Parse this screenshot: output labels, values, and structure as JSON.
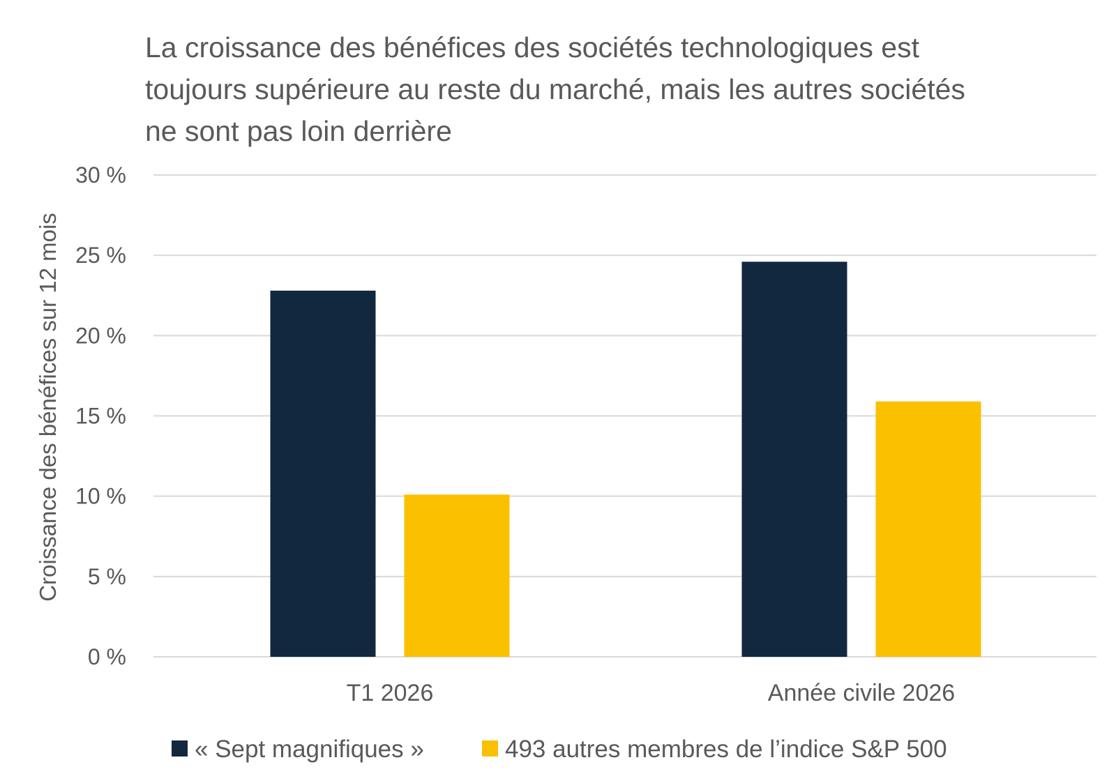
{
  "chart_data": {
    "type": "bar",
    "title": "La croissance des bénéfices des sociétés technologiques est toujours supérieure au reste du marché, mais les autres sociétés ne sont pas loin derrière",
    "title_lines": [
      "La croissance des bénéfices des sociétés technologiques est",
      "toujours supérieure au reste du marché, mais les autres sociétés",
      "ne sont pas loin derrière"
    ],
    "ylabel": "Croissance des bénéfices sur 12 mois",
    "xlabel": "",
    "categories": [
      "T1 2026",
      "Année civile 2026"
    ],
    "series": [
      {
        "name": "« Sept magnifiques »",
        "values": [
          22.8,
          24.6
        ],
        "color": "#12283f"
      },
      {
        "name": "493 autres membres de l’indice S&P 500",
        "values": [
          10.1,
          15.9
        ],
        "color": "#fbc000"
      }
    ],
    "ylim": [
      0,
      30
    ],
    "yticks": [
      0,
      5,
      10,
      15,
      20,
      25,
      30
    ],
    "ytick_labels": [
      "0 %",
      "5 %",
      "10 %",
      "15 %",
      "20 %",
      "25 %",
      "30 %"
    ],
    "grid": true,
    "gridline_color": "#d9d9d9",
    "legend_position": "bottom"
  }
}
